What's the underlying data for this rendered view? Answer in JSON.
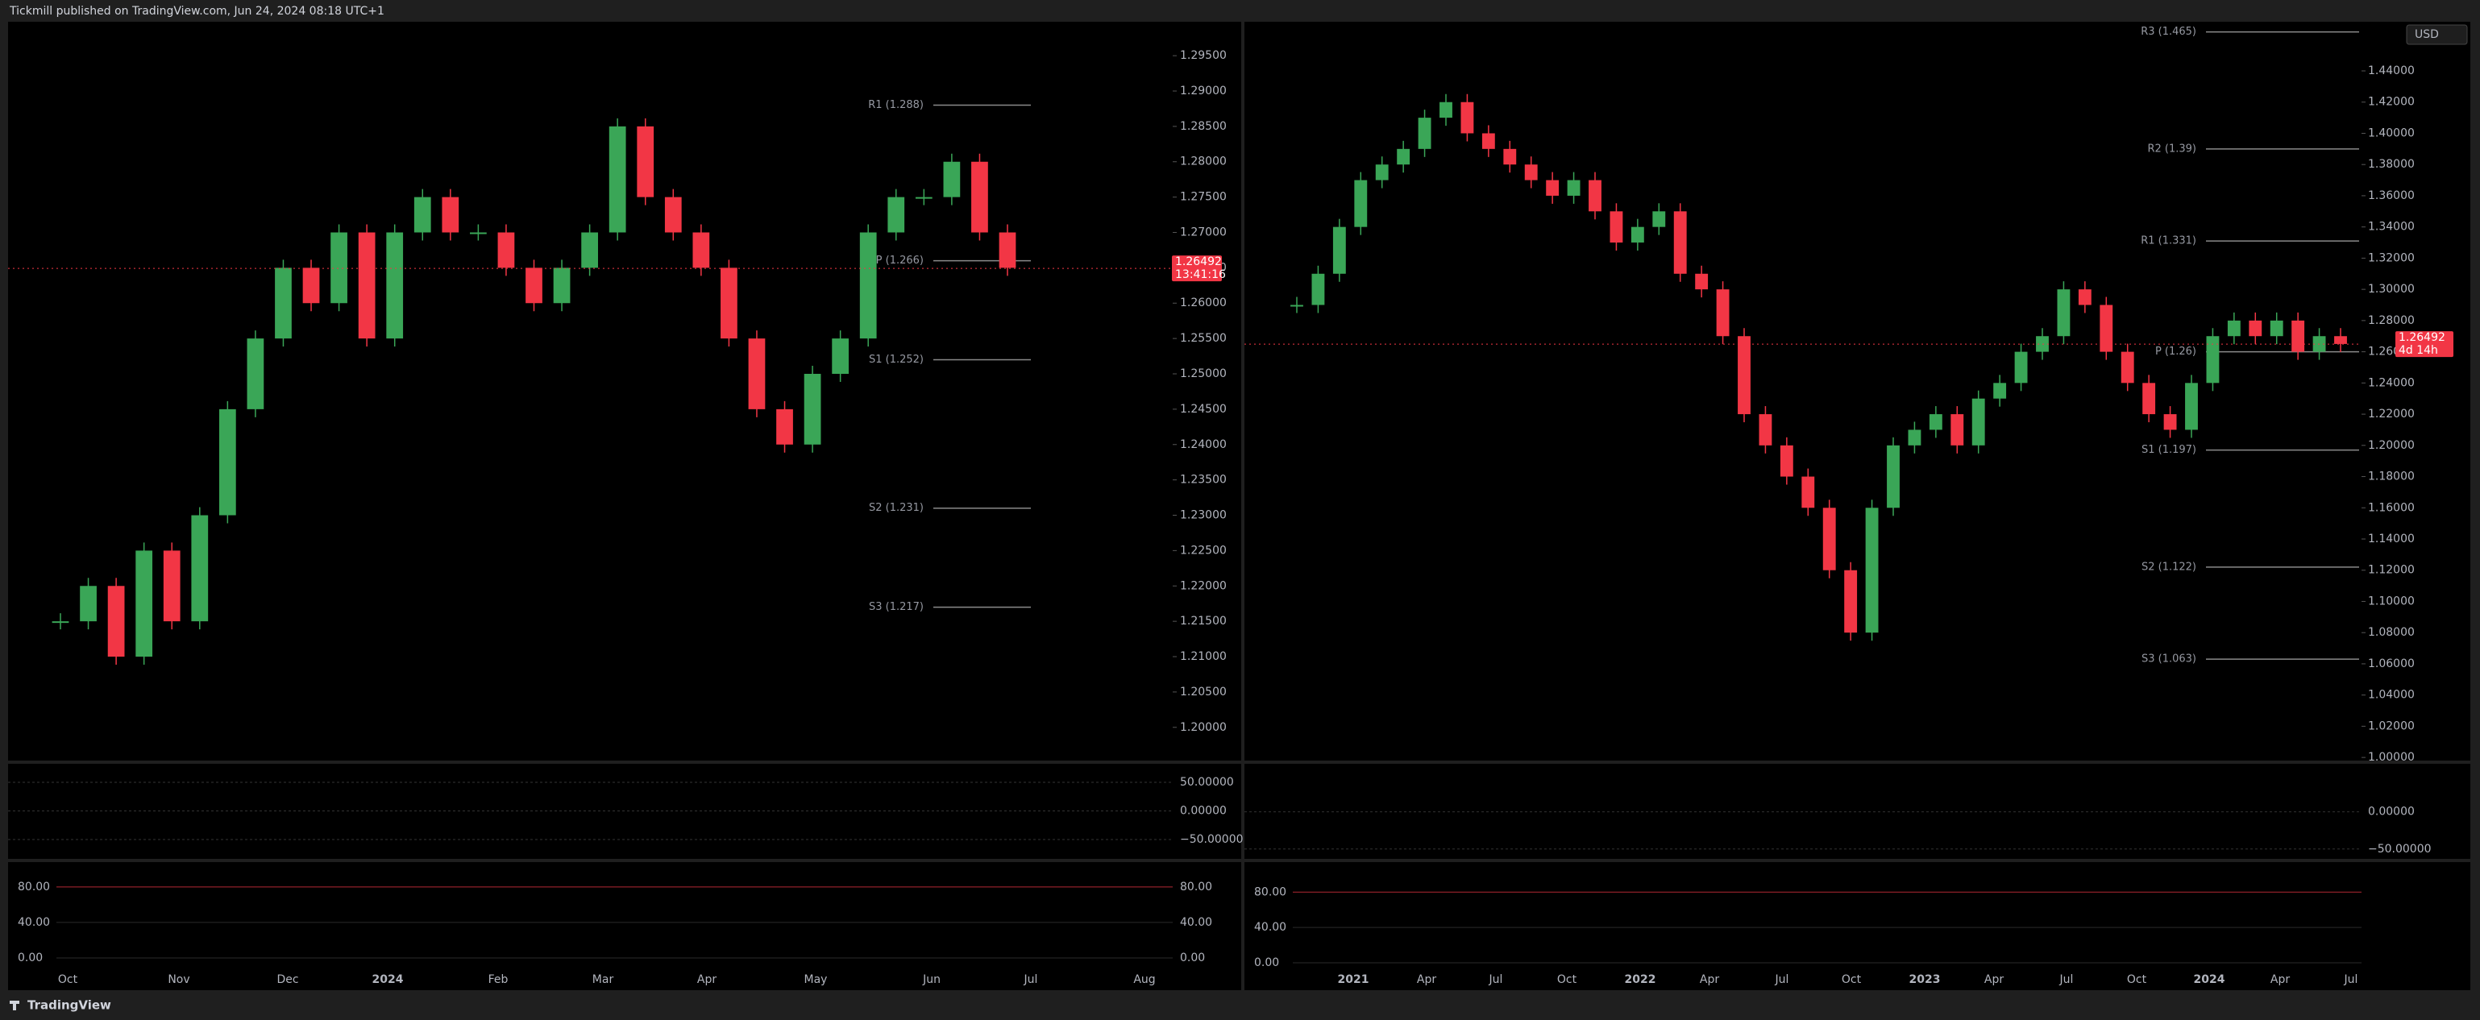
{
  "header": {
    "title": "Tickmill published on TradingView.com, Jun 24, 2024 08:18 UTC+1"
  },
  "footer": {
    "brand": "TradingView"
  },
  "panels": [
    {
      "price_axis": {
        "ylim": [
          1.1953,
          1.2998
        ],
        "ticks": [
          {
            "value": 1.295,
            "label": "1.29500"
          },
          {
            "value": 1.29,
            "label": "1.29000"
          },
          {
            "value": 1.285,
            "label": "1.28500"
          },
          {
            "value": 1.28,
            "label": "1.28000"
          },
          {
            "value": 1.275,
            "label": "1.27500"
          },
          {
            "value": 1.27,
            "label": "1.27000"
          },
          {
            "value": 1.265,
            "label": "1.26500"
          },
          {
            "value": 1.26,
            "label": "1.26000"
          },
          {
            "value": 1.255,
            "label": "1.25500"
          },
          {
            "value": 1.25,
            "label": "1.25000"
          },
          {
            "value": 1.245,
            "label": "1.24500"
          },
          {
            "value": 1.24,
            "label": "1.24000"
          },
          {
            "value": 1.235,
            "label": "1.23500"
          },
          {
            "value": 1.23,
            "label": "1.23000"
          },
          {
            "value": 1.225,
            "label": "1.22500"
          },
          {
            "value": 1.22,
            "label": "1.22000"
          },
          {
            "value": 1.215,
            "label": "1.21500"
          },
          {
            "value": 1.21,
            "label": "1.21000"
          },
          {
            "value": 1.205,
            "label": "1.20500"
          },
          {
            "value": 1.2,
            "label": "1.20000"
          }
        ]
      },
      "pivots": [
        {
          "value": 1.288,
          "label": "R1 (1.288)"
        },
        {
          "value": 1.266,
          "label": "P (1.266)"
        },
        {
          "value": 1.252,
          "label": "S1 (1.252)"
        },
        {
          "value": 1.231,
          "label": "S2 (1.231)"
        },
        {
          "value": 1.217,
          "label": "S3 (1.217)"
        }
      ],
      "last_price": {
        "value": 1.26492,
        "countdown": "13:41:16"
      },
      "closes": [
        1.215,
        1.22,
        1.21,
        1.225,
        1.215,
        1.23,
        1.245,
        1.255,
        1.265,
        1.26,
        1.27,
        1.255,
        1.27,
        1.275,
        1.27,
        1.27,
        1.265,
        1.26,
        1.265,
        1.27,
        1.285,
        1.275,
        1.27,
        1.265,
        1.255,
        1.245,
        1.24,
        1.25,
        1.255,
        1.27,
        1.275,
        1.275,
        1.28,
        1.27,
        1.265
      ],
      "oscillator": {
        "ylim": [
          -83.8,
          82.4
        ],
        "ticks": [
          {
            "value": 50,
            "label": "50.00000"
          },
          {
            "value": 0,
            "label": "0.00000"
          },
          {
            "value": -50,
            "label": "−50.00000"
          }
        ]
      },
      "stochastic": {
        "ylim": [
          -12.7,
          108
        ],
        "ticks": [
          {
            "value": 80,
            "label": "80.00"
          },
          {
            "value": 40,
            "label": "40.00"
          },
          {
            "value": 0,
            "label": "0.00"
          }
        ]
      },
      "time_labels": [
        "Oct",
        "Nov",
        "Dec",
        "2024",
        "Feb",
        "Mar",
        "Apr",
        "May",
        "Jun",
        "Jul",
        "Aug"
      ]
    },
    {
      "currency": "USD",
      "price_axis": {
        "ylim": [
          0.998,
          1.4715
        ],
        "ticks": [
          {
            "value": 1.44,
            "label": "1.44000"
          },
          {
            "value": 1.42,
            "label": "1.42000"
          },
          {
            "value": 1.4,
            "label": "1.40000"
          },
          {
            "value": 1.38,
            "label": "1.38000"
          },
          {
            "value": 1.36,
            "label": "1.36000"
          },
          {
            "value": 1.34,
            "label": "1.34000"
          },
          {
            "value": 1.32,
            "label": "1.32000"
          },
          {
            "value": 1.3,
            "label": "1.30000"
          },
          {
            "value": 1.28,
            "label": "1.28000"
          },
          {
            "value": 1.26,
            "label": "1.26000"
          },
          {
            "value": 1.24,
            "label": "1.24000"
          },
          {
            "value": 1.22,
            "label": "1.22000"
          },
          {
            "value": 1.2,
            "label": "1.20000"
          },
          {
            "value": 1.18,
            "label": "1.18000"
          },
          {
            "value": 1.16,
            "label": "1.16000"
          },
          {
            "value": 1.14,
            "label": "1.14000"
          },
          {
            "value": 1.12,
            "label": "1.12000"
          },
          {
            "value": 1.1,
            "label": "1.10000"
          },
          {
            "value": 1.08,
            "label": "1.08000"
          },
          {
            "value": 1.06,
            "label": "1.06000"
          },
          {
            "value": 1.04,
            "label": "1.04000"
          },
          {
            "value": 1.02,
            "label": "1.02000"
          },
          {
            "value": 1,
            "label": "1.00000"
          }
        ]
      },
      "pivots": [
        {
          "value": 1.465,
          "label": "R3 (1.465)"
        },
        {
          "value": 1.39,
          "label": "R2 (1.39)"
        },
        {
          "value": 1.331,
          "label": "R1 (1.331)"
        },
        {
          "value": 1.26,
          "label": "P (1.26)"
        },
        {
          "value": 1.197,
          "label": "S1 (1.197)"
        },
        {
          "value": 1.122,
          "label": "S2 (1.122)"
        },
        {
          "value": 1.063,
          "label": "S3 (1.063)"
        }
      ],
      "last_price": {
        "value": 1.26492,
        "countdown": "4d 14h"
      },
      "closes": [
        1.29,
        1.31,
        1.34,
        1.37,
        1.38,
        1.39,
        1.41,
        1.42,
        1.4,
        1.39,
        1.38,
        1.37,
        1.36,
        1.37,
        1.35,
        1.33,
        1.34,
        1.35,
        1.31,
        1.3,
        1.27,
        1.22,
        1.2,
        1.18,
        1.16,
        1.12,
        1.08,
        1.16,
        1.2,
        1.21,
        1.22,
        1.2,
        1.23,
        1.24,
        1.26,
        1.27,
        1.3,
        1.29,
        1.26,
        1.24,
        1.22,
        1.21,
        1.24,
        1.27,
        1.28,
        1.27,
        1.28,
        1.26,
        1.27,
        1.265
      ],
      "oscillator": {
        "ylim": [
          -63.2,
          64.6
        ],
        "ticks": [
          {
            "value": 0,
            "label": "0.00000"
          },
          {
            "value": -50,
            "label": "−50.00000"
          }
        ]
      },
      "stochastic": {
        "ylim": [
          -7.3,
          114
        ],
        "ticks": [
          {
            "value": 80,
            "label": "80.00"
          },
          {
            "value": 40,
            "label": "40.00"
          },
          {
            "value": 0,
            "label": "0.00"
          }
        ]
      },
      "time_labels": [
        "2021",
        "Apr",
        "Jul",
        "Oct",
        "2022",
        "Apr",
        "Jul",
        "Oct",
        "2023",
        "Apr",
        "Jul",
        "Oct",
        "2024",
        "Apr",
        "Jul"
      ]
    }
  ]
}
